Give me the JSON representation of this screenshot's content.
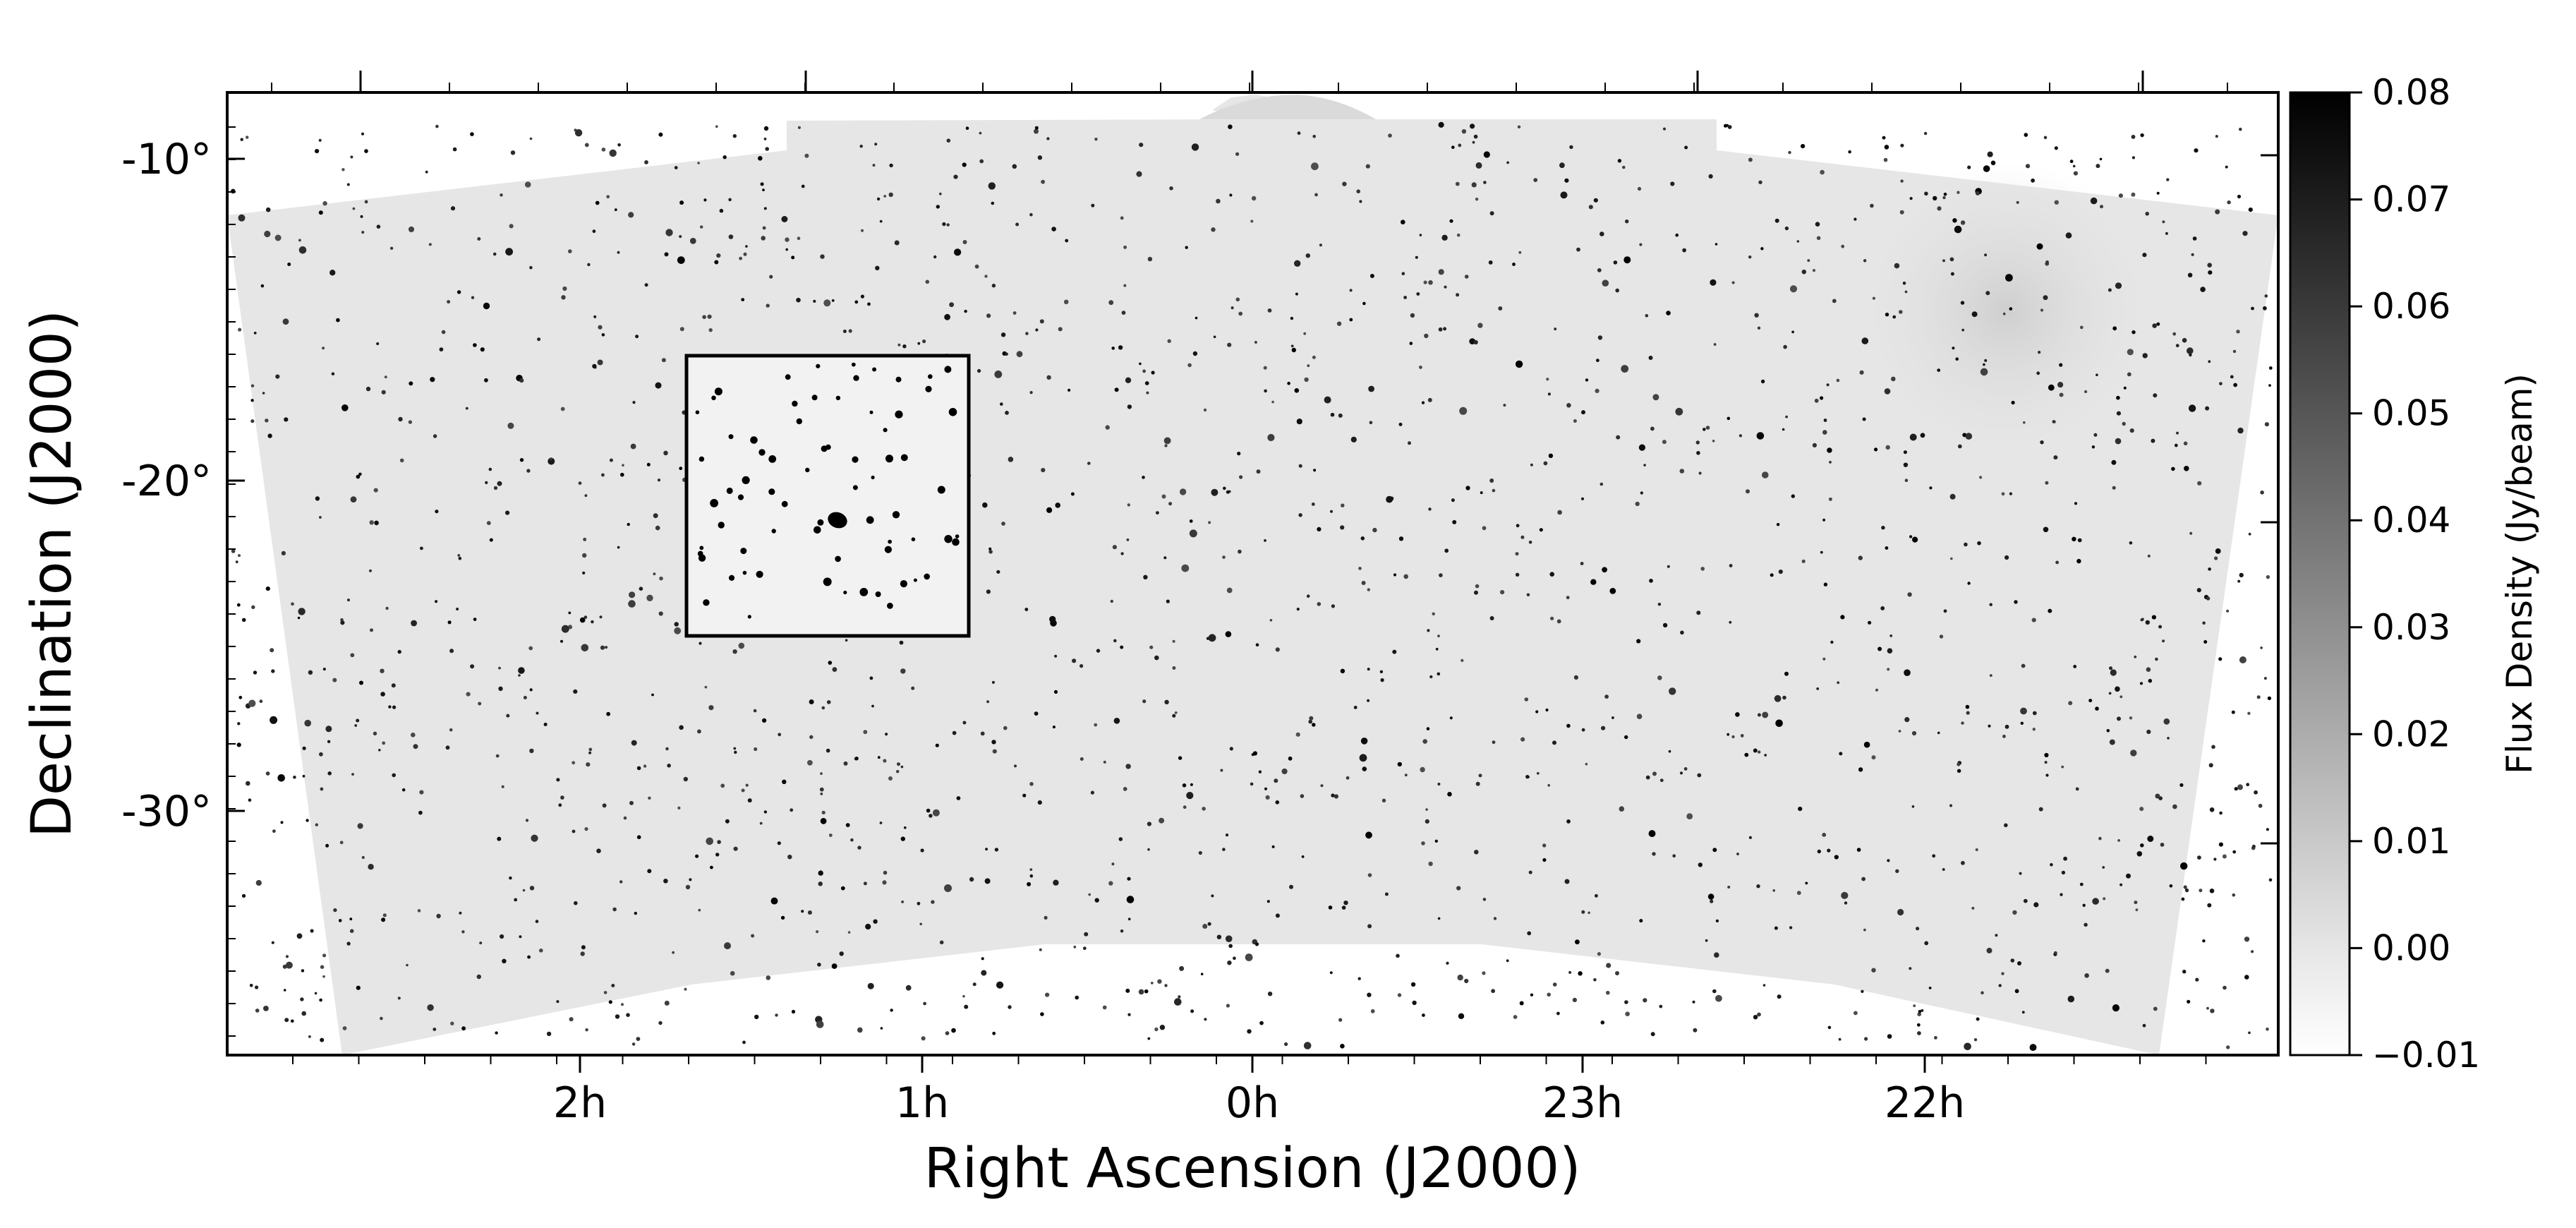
{
  "chart_data": {
    "type": "heatmap",
    "title": "",
    "xlabel": "Right Ascension (J2000)",
    "ylabel": "Declination (J2000)",
    "x_ticks": [
      "2h",
      "1h",
      "0h",
      "23h",
      "22h"
    ],
    "y_ticks": [
      "-10°",
      "-20°",
      "-30°"
    ],
    "colorbar": {
      "label": "Flux Density (Jy/beam)",
      "min": -0.01,
      "max": 0.08,
      "ticks": [
        "−0.01",
        "0.00",
        "0.01",
        "0.02",
        "0.03",
        "0.04",
        "0.05",
        "0.06",
        "0.07",
        "0.08"
      ],
      "colormap": "gray_r"
    },
    "inset_box": {
      "ra_range": [
        "1h42m",
        "0h53m"
      ],
      "dec_range": [
        -16.1,
        -24.8
      ],
      "description_visible": false
    },
    "background_color": "#e6e6e6",
    "source_color": "#000000"
  }
}
